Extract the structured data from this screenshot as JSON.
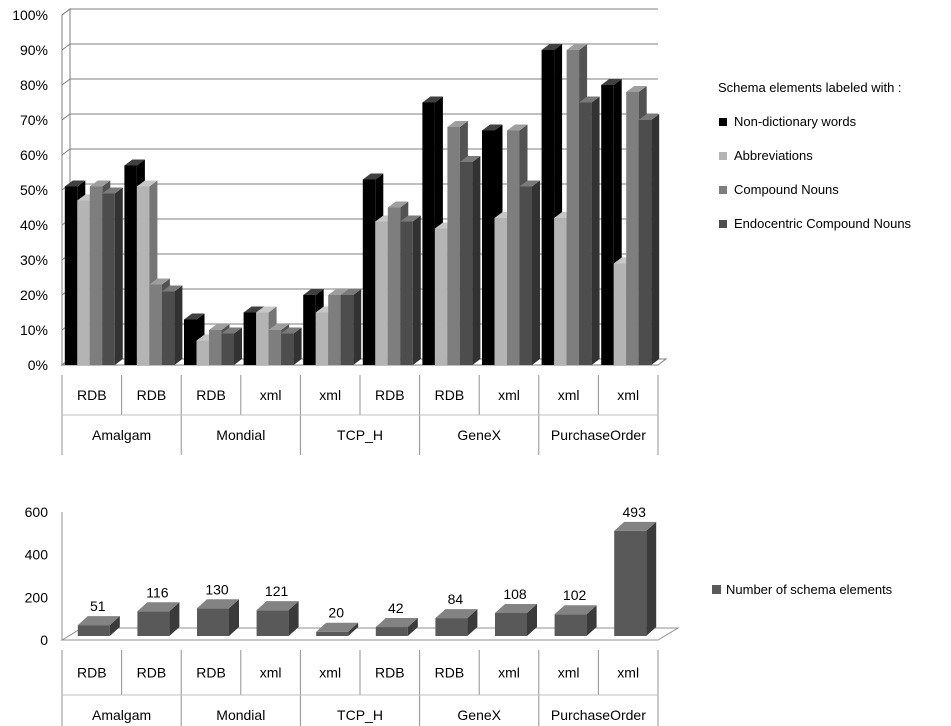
{
  "chart_data": [
    {
      "type": "bar",
      "title": "",
      "xlabel": "",
      "ylabel": "",
      "ylim": [
        0,
        100
      ],
      "y_ticks": [
        "0%",
        "10%",
        "20%",
        "30%",
        "40%",
        "50%",
        "60%",
        "70%",
        "80%",
        "90%",
        "100%"
      ],
      "categories": [
        "RDB",
        "RDB",
        "RDB",
        "xml",
        "xml",
        "RDB",
        "RDB",
        "xml",
        "xml",
        "xml"
      ],
      "groups": [
        {
          "label": "Amalgam",
          "count": 2
        },
        {
          "label": "Mondial",
          "count": 2
        },
        {
          "label": "TCP_H",
          "count": 2
        },
        {
          "label": "GeneX",
          "count": 2
        },
        {
          "label": "PurchaseOrder",
          "count": 2
        }
      ],
      "legend_title": "Schema elements labeled with :",
      "legend_position": "right",
      "grid": true,
      "series": [
        {
          "name": "Non-dictionary words",
          "color": "#000000",
          "values": [
            51,
            57,
            13,
            15,
            20,
            53,
            75,
            67,
            90,
            80
          ]
        },
        {
          "name": "Abbreviations",
          "color": "#b4b4b4",
          "values": [
            47,
            51,
            7,
            15,
            15,
            41,
            39,
            42,
            42,
            29
          ]
        },
        {
          "name": "Compound Nouns",
          "color": "#7e7e7e",
          "values": [
            51,
            23,
            10,
            10,
            20,
            45,
            68,
            67,
            90,
            78
          ]
        },
        {
          "name": "Endocentric Compound Nouns",
          "color": "#4d4d4d",
          "values": [
            49,
            21,
            9,
            9,
            20,
            41,
            58,
            51,
            75,
            70
          ]
        }
      ]
    },
    {
      "type": "bar",
      "title": "",
      "xlabel": "",
      "ylabel": "",
      "ylim": [
        0,
        600
      ],
      "y_ticks": [
        "0",
        "200",
        "400",
        "600"
      ],
      "categories": [
        "RDB",
        "RDB",
        "RDB",
        "xml",
        "xml",
        "RDB",
        "RDB",
        "xml",
        "xml",
        "xml"
      ],
      "groups": [
        {
          "label": "Amalgam",
          "count": 2
        },
        {
          "label": "Mondial",
          "count": 2
        },
        {
          "label": "TCP_H",
          "count": 2
        },
        {
          "label": "GeneX",
          "count": 2
        },
        {
          "label": "PurchaseOrder",
          "count": 2
        }
      ],
      "legend_position": "right",
      "grid": false,
      "series": [
        {
          "name": "Number of schema elements",
          "color": "#595959",
          "values": [
            51,
            116,
            130,
            121,
            20,
            42,
            84,
            108,
            102,
            493
          ]
        }
      ],
      "data_labels": [
        "51",
        "116",
        "130",
        "121",
        "20",
        "42",
        "84",
        "108",
        "102",
        "493"
      ]
    }
  ]
}
